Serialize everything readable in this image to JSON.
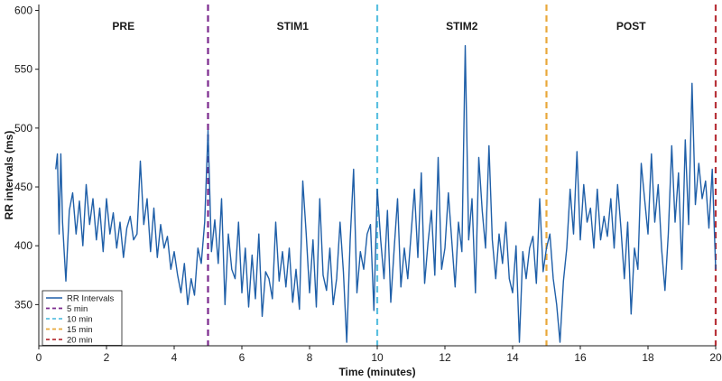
{
  "chart_data": {
    "type": "line",
    "title": "",
    "xlabel": "Time (minutes)",
    "ylabel": "RR intervals (ms)",
    "xlim": [
      0,
      20
    ],
    "ylim": [
      315,
      605
    ],
    "xticks": [
      0,
      2,
      4,
      6,
      8,
      10,
      12,
      14,
      16,
      18,
      20
    ],
    "yticks": [
      350,
      400,
      450,
      500,
      550,
      600
    ],
    "grid": false,
    "legend_position": "bottom-left",
    "phases": [
      {
        "label": "PRE",
        "x": 2.5
      },
      {
        "label": "STIM1",
        "x": 7.5
      },
      {
        "label": "STIM2",
        "x": 12.5
      },
      {
        "label": "POST",
        "x": 17.5
      }
    ],
    "vlines": [
      {
        "name": "5 min",
        "x": 5,
        "color": "#7b2a8e"
      },
      {
        "name": "10 min",
        "x": 10,
        "color": "#5bc0e0"
      },
      {
        "name": "15 min",
        "x": 15,
        "color": "#e8a83a"
      },
      {
        "name": "20 min",
        "x": 20,
        "color": "#b8333a"
      }
    ],
    "series": [
      {
        "name": "RR Intervals",
        "color": "#1f5fa8",
        "x": [
          0.5,
          0.55,
          0.6,
          0.65,
          0.7,
          0.75,
          0.8,
          0.9,
          1.0,
          1.1,
          1.2,
          1.3,
          1.4,
          1.5,
          1.6,
          1.7,
          1.8,
          1.9,
          2.0,
          2.1,
          2.2,
          2.3,
          2.4,
          2.5,
          2.6,
          2.7,
          2.8,
          2.9,
          3.0,
          3.1,
          3.2,
          3.3,
          3.4,
          3.5,
          3.6,
          3.7,
          3.8,
          3.9,
          4.0,
          4.1,
          4.2,
          4.3,
          4.4,
          4.5,
          4.6,
          4.7,
          4.8,
          4.9,
          5.0,
          5.1,
          5.2,
          5.3,
          5.4,
          5.5,
          5.6,
          5.7,
          5.8,
          5.9,
          6.0,
          6.1,
          6.2,
          6.3,
          6.4,
          6.5,
          6.6,
          6.7,
          6.8,
          6.9,
          7.0,
          7.1,
          7.2,
          7.3,
          7.4,
          7.5,
          7.6,
          7.7,
          7.8,
          7.9,
          8.0,
          8.1,
          8.2,
          8.3,
          8.4,
          8.5,
          8.6,
          8.7,
          8.8,
          8.9,
          9.0,
          9.1,
          9.2,
          9.3,
          9.4,
          9.5,
          9.6,
          9.7,
          9.8,
          9.9,
          10.0,
          10.1,
          10.2,
          10.3,
          10.4,
          10.5,
          10.6,
          10.7,
          10.8,
          10.9,
          11.0,
          11.1,
          11.2,
          11.3,
          11.4,
          11.5,
          11.6,
          11.7,
          11.8,
          11.9,
          12.0,
          12.1,
          12.2,
          12.3,
          12.4,
          12.5,
          12.6,
          12.7,
          12.8,
          12.9,
          13.0,
          13.1,
          13.2,
          13.3,
          13.4,
          13.5,
          13.6,
          13.7,
          13.8,
          13.9,
          14.0,
          14.1,
          14.2,
          14.3,
          14.4,
          14.5,
          14.6,
          14.7,
          14.8,
          14.9,
          15.0,
          15.1,
          15.2,
          15.3,
          15.4,
          15.5,
          15.6,
          15.7,
          15.8,
          15.9,
          16.0,
          16.1,
          16.2,
          16.3,
          16.4,
          16.5,
          16.6,
          16.7,
          16.8,
          16.9,
          17.0,
          17.1,
          17.2,
          17.3,
          17.4,
          17.5,
          17.6,
          17.7,
          17.8,
          17.9,
          18.0,
          18.1,
          18.2,
          18.3,
          18.4,
          18.5,
          18.6,
          18.7,
          18.8,
          18.9,
          19.0,
          19.1,
          19.2,
          19.3,
          19.4,
          19.5,
          19.6,
          19.7,
          19.8,
          19.9,
          20.0
        ],
        "values": [
          465,
          478,
          410,
          478,
          420,
          395,
          370,
          430,
          445,
          410,
          438,
          400,
          452,
          418,
          440,
          405,
          432,
          395,
          440,
          410,
          428,
          398,
          420,
          390,
          415,
          425,
          405,
          410,
          472,
          418,
          440,
          395,
          432,
          390,
          418,
          398,
          408,
          380,
          395,
          375,
          360,
          385,
          350,
          372,
          358,
          398,
          385,
          420,
          498,
          395,
          422,
          385,
          440,
          350,
          410,
          380,
          372,
          420,
          360,
          398,
          348,
          392,
          355,
          410,
          340,
          378,
          372,
          355,
          420,
          370,
          395,
          365,
          398,
          352,
          380,
          346,
          455,
          410,
          360,
          405,
          348,
          440,
          375,
          362,
          398,
          350,
          372,
          420,
          378,
          318,
          405,
          465,
          360,
          395,
          380,
          410,
          418,
          345,
          448,
          405,
          372,
          430,
          352,
          398,
          440,
          365,
          398,
          372,
          410,
          448,
          390,
          462,
          368,
          402,
          430,
          375,
          475,
          380,
          398,
          445,
          405,
          365,
          420,
          395,
          570,
          405,
          440,
          360,
          475,
          430,
          398,
          485,
          405,
          372,
          410,
          385,
          420,
          372,
          360,
          400,
          318,
          395,
          372,
          398,
          408,
          368,
          440,
          378,
          398,
          410,
          372,
          350,
          318,
          370,
          398,
          448,
          410,
          480,
          405,
          452,
          420,
          432,
          398,
          448,
          405,
          425,
          408,
          440,
          398,
          452,
          415,
          372,
          420,
          342,
          398,
          380,
          470,
          440,
          410,
          478,
          420,
          452,
          398,
          362,
          410,
          485,
          420,
          462,
          380,
          490,
          418,
          538,
          435,
          470,
          440,
          455,
          415,
          465,
          380
        ]
      }
    ]
  }
}
